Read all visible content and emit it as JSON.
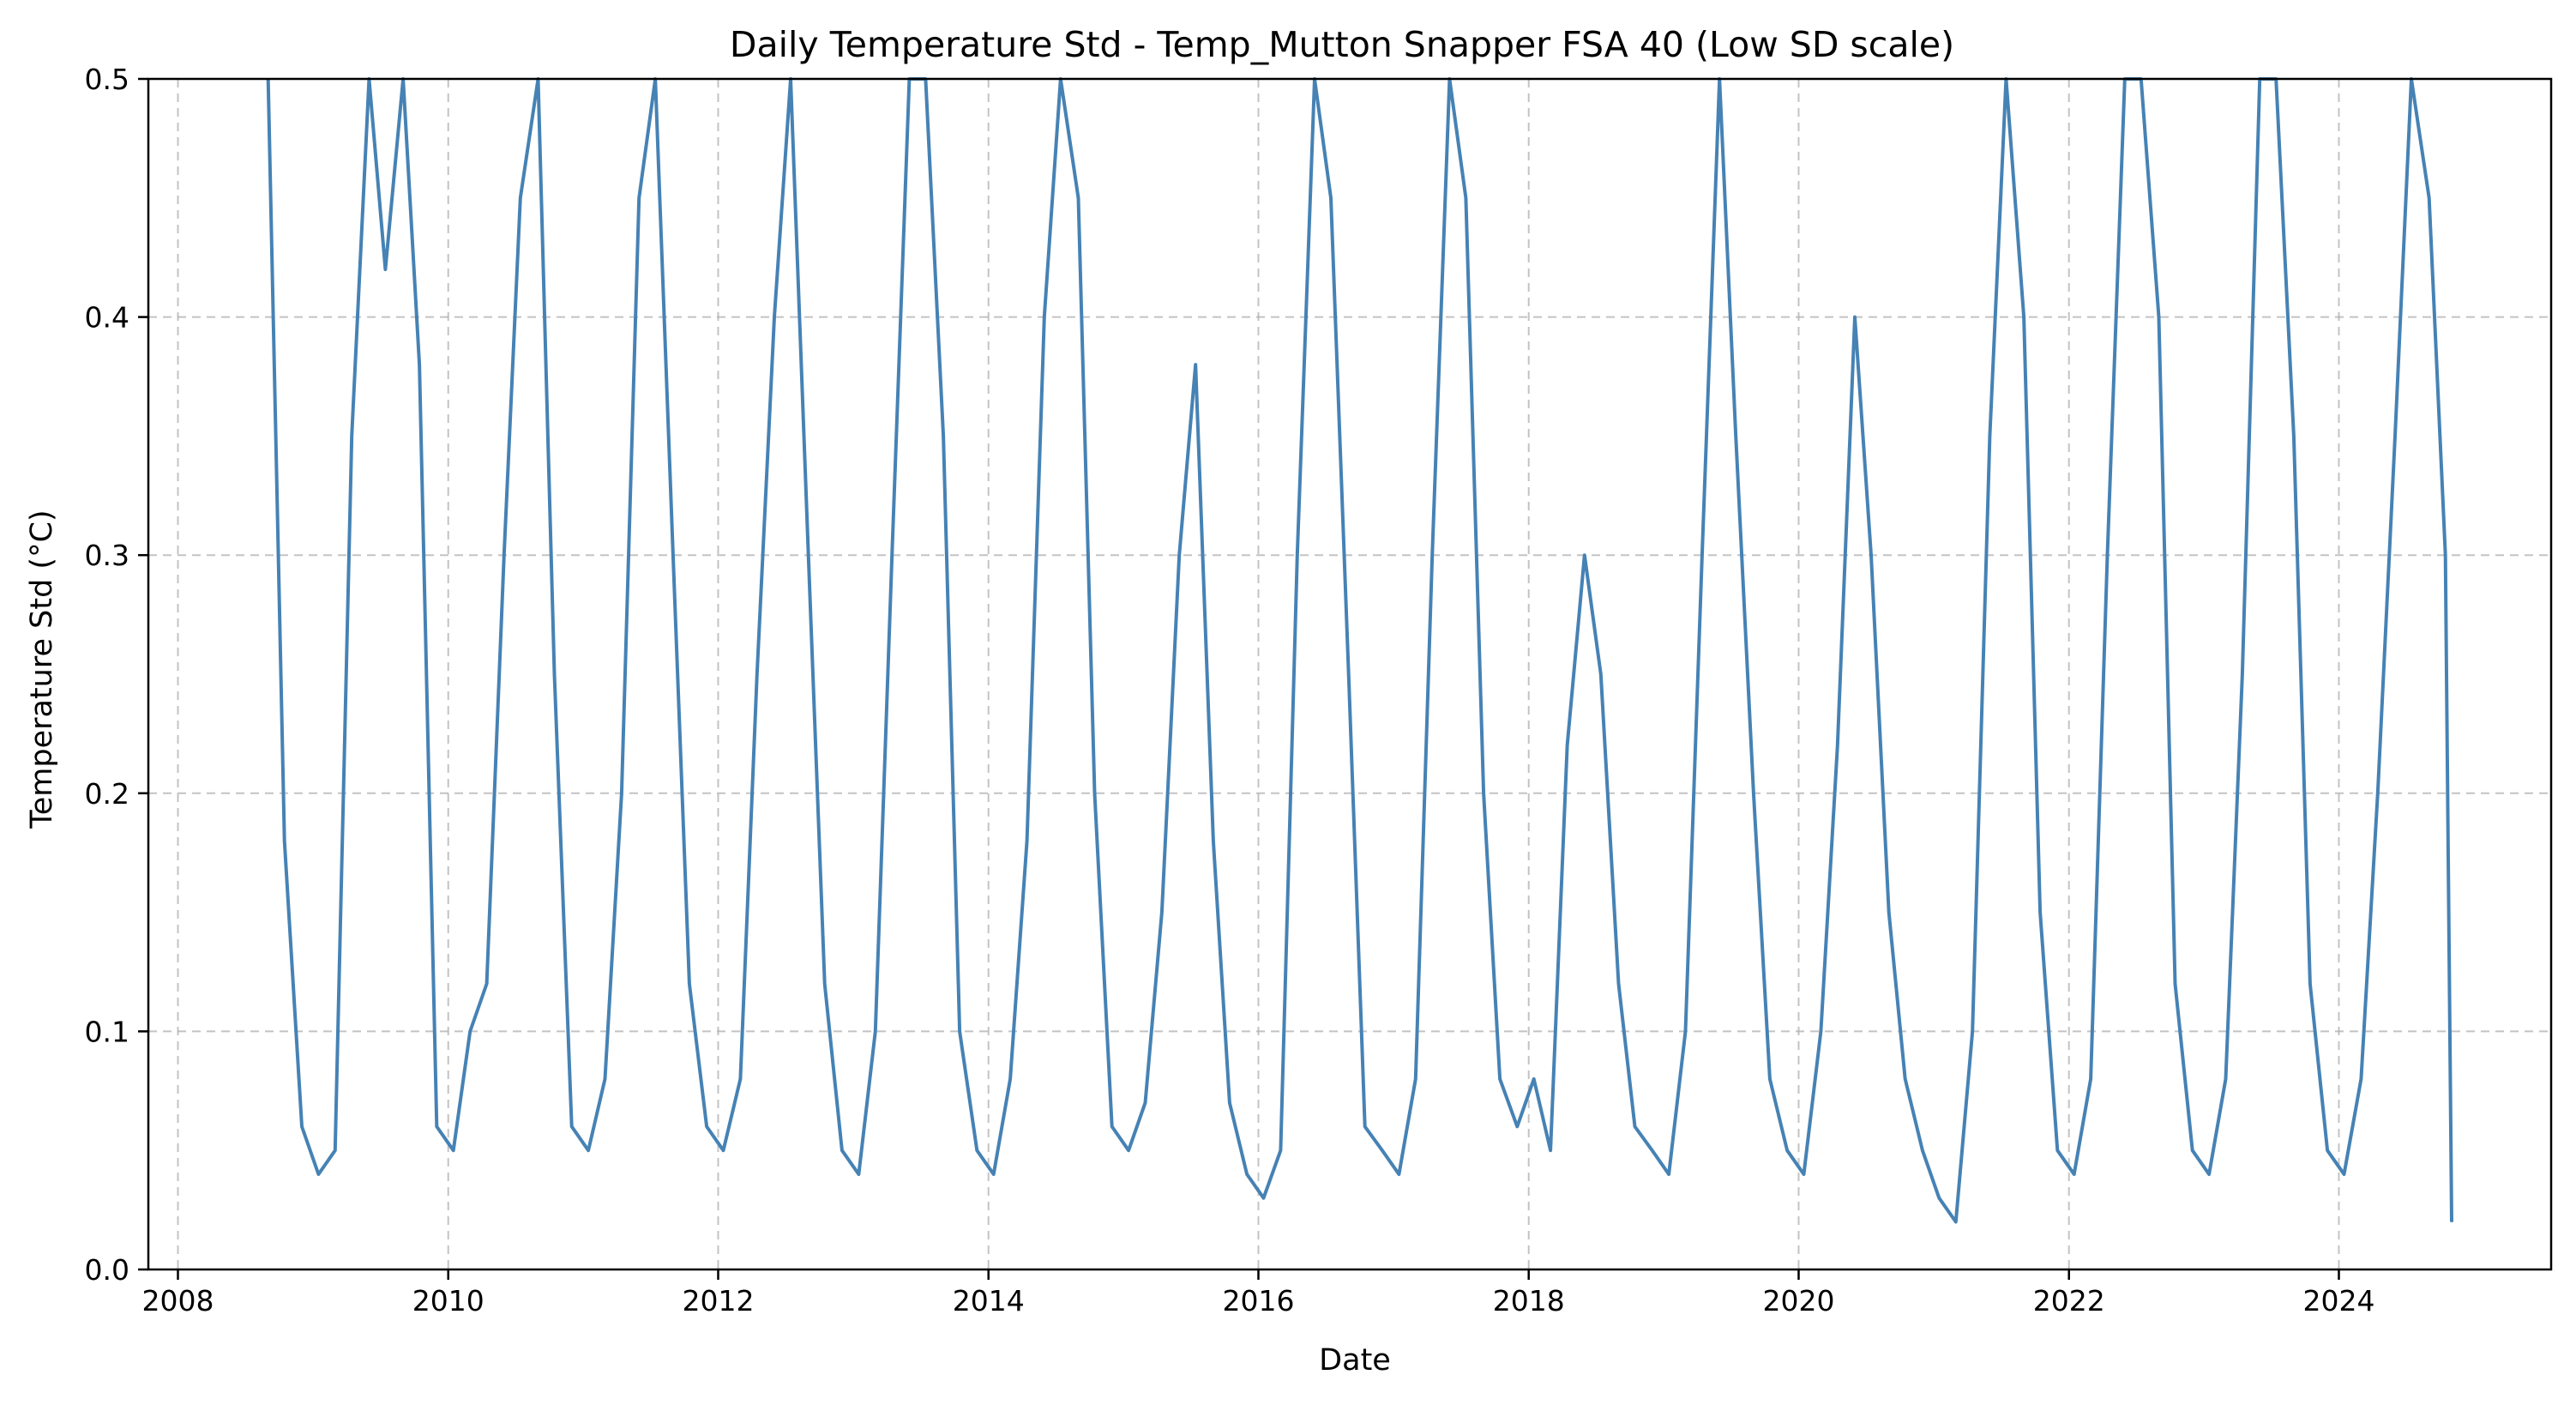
{
  "chart_data": {
    "type": "line",
    "title": "Daily Temperature Std - Temp_Mutton Snapper FSA 40 (Low SD scale)",
    "xlabel": "Date",
    "ylabel": "Temperature Std (°C)",
    "xlim": [
      "2007-10-13",
      "2025-07-28"
    ],
    "ylim": [
      0,
      0.5
    ],
    "x_ticks": [
      "2008",
      "2010",
      "2012",
      "2014",
      "2016",
      "2018",
      "2020",
      "2022",
      "2024"
    ],
    "y_ticks": [
      "0.0",
      "0.1",
      "0.2",
      "0.3",
      "0.4",
      "0.5"
    ],
    "grid": true,
    "legend": "none",
    "color": "#4682b4",
    "series": [
      {
        "x": [
          "2008-09-01",
          "2008-10-15",
          "2008-12-01",
          "2009-01-15",
          "2009-03-01",
          "2009-04-15",
          "2009-06-01",
          "2009-07-15",
          "2009-09-01",
          "2009-10-15",
          "2009-12-01",
          "2010-01-15",
          "2010-03-01",
          "2010-04-15",
          "2010-06-01",
          "2010-07-15",
          "2010-09-01",
          "2010-10-15",
          "2010-12-01",
          "2011-01-15",
          "2011-03-01",
          "2011-04-15",
          "2011-06-01",
          "2011-07-15",
          "2011-09-01",
          "2011-10-15",
          "2011-12-01",
          "2012-01-15",
          "2012-03-01",
          "2012-04-15",
          "2012-06-01",
          "2012-07-15",
          "2012-09-01",
          "2012-10-15",
          "2012-12-01",
          "2013-01-15",
          "2013-03-01",
          "2013-04-15",
          "2013-06-01",
          "2013-07-15",
          "2013-09-01",
          "2013-10-15",
          "2013-12-01",
          "2014-01-15",
          "2014-03-01",
          "2014-04-15",
          "2014-06-01",
          "2014-07-15",
          "2014-09-01",
          "2014-10-15",
          "2014-12-01",
          "2015-01-15",
          "2015-03-01",
          "2015-04-15",
          "2015-06-01",
          "2015-07-15",
          "2015-09-01",
          "2015-10-15",
          "2015-12-01",
          "2016-01-15",
          "2016-03-01",
          "2016-04-15",
          "2016-06-01",
          "2016-07-15",
          "2016-09-01",
          "2016-10-15",
          "2016-12-01",
          "2017-01-15",
          "2017-03-01",
          "2017-04-15",
          "2017-06-01",
          "2017-07-15",
          "2017-09-01",
          "2017-10-15",
          "2017-12-01",
          "2018-01-15",
          "2018-03-01",
          "2018-04-15",
          "2018-06-01",
          "2018-07-15",
          "2018-09-01",
          "2018-10-15",
          "2018-12-01",
          "2019-01-15",
          "2019-03-01",
          "2019-04-15",
          "2019-06-01",
          "2019-07-15",
          "2019-09-01",
          "2019-10-15",
          "2019-12-01",
          "2020-01-15",
          "2020-03-01",
          "2020-04-15",
          "2020-06-01",
          "2020-07-15",
          "2020-09-01",
          "2020-10-15",
          "2020-12-01",
          "2021-01-15",
          "2021-03-01",
          "2021-04-15",
          "2021-06-01",
          "2021-07-15",
          "2021-09-01",
          "2021-10-15",
          "2021-12-01",
          "2022-01-15",
          "2022-03-01",
          "2022-04-15",
          "2022-06-01",
          "2022-07-15",
          "2022-09-01",
          "2022-10-15",
          "2022-12-01",
          "2023-01-15",
          "2023-03-01",
          "2023-04-15",
          "2023-06-01",
          "2023-07-15",
          "2023-09-01",
          "2023-10-15",
          "2023-12-01",
          "2024-01-15",
          "2024-03-01",
          "2024-04-15",
          "2024-06-01",
          "2024-07-15",
          "2024-09-01",
          "2024-10-15",
          "2024-11-01"
        ],
        "values": [
          0.5,
          0.18,
          0.06,
          0.04,
          0.05,
          0.35,
          0.5,
          0.42,
          0.5,
          0.38,
          0.06,
          0.05,
          0.1,
          0.12,
          0.3,
          0.45,
          0.5,
          0.25,
          0.06,
          0.05,
          0.08,
          0.2,
          0.45,
          0.5,
          0.3,
          0.12,
          0.06,
          0.05,
          0.08,
          0.25,
          0.4,
          0.5,
          0.3,
          0.12,
          0.05,
          0.04,
          0.1,
          0.3,
          0.5,
          0.5,
          0.35,
          0.1,
          0.05,
          0.04,
          0.08,
          0.18,
          0.4,
          0.5,
          0.45,
          0.2,
          0.06,
          0.05,
          0.07,
          0.15,
          0.3,
          0.38,
          0.18,
          0.07,
          0.04,
          0.03,
          0.05,
          0.3,
          0.5,
          0.45,
          0.25,
          0.06,
          0.05,
          0.04,
          0.08,
          0.3,
          0.5,
          0.45,
          0.2,
          0.08,
          0.06,
          0.08,
          0.05,
          0.22,
          0.3,
          0.25,
          0.12,
          0.06,
          0.05,
          0.04,
          0.1,
          0.3,
          0.5,
          0.35,
          0.2,
          0.08,
          0.05,
          0.04,
          0.1,
          0.22,
          0.4,
          0.3,
          0.15,
          0.08,
          0.05,
          0.03,
          0.02,
          0.1,
          0.35,
          0.5,
          0.4,
          0.15,
          0.05,
          0.04,
          0.08,
          0.3,
          0.5,
          0.5,
          0.4,
          0.12,
          0.05,
          0.04,
          0.08,
          0.25,
          0.5,
          0.5,
          0.35,
          0.12,
          0.05,
          0.04,
          0.08,
          0.2,
          0.35,
          0.5,
          0.45,
          0.3,
          0.02
        ]
      }
    ]
  }
}
